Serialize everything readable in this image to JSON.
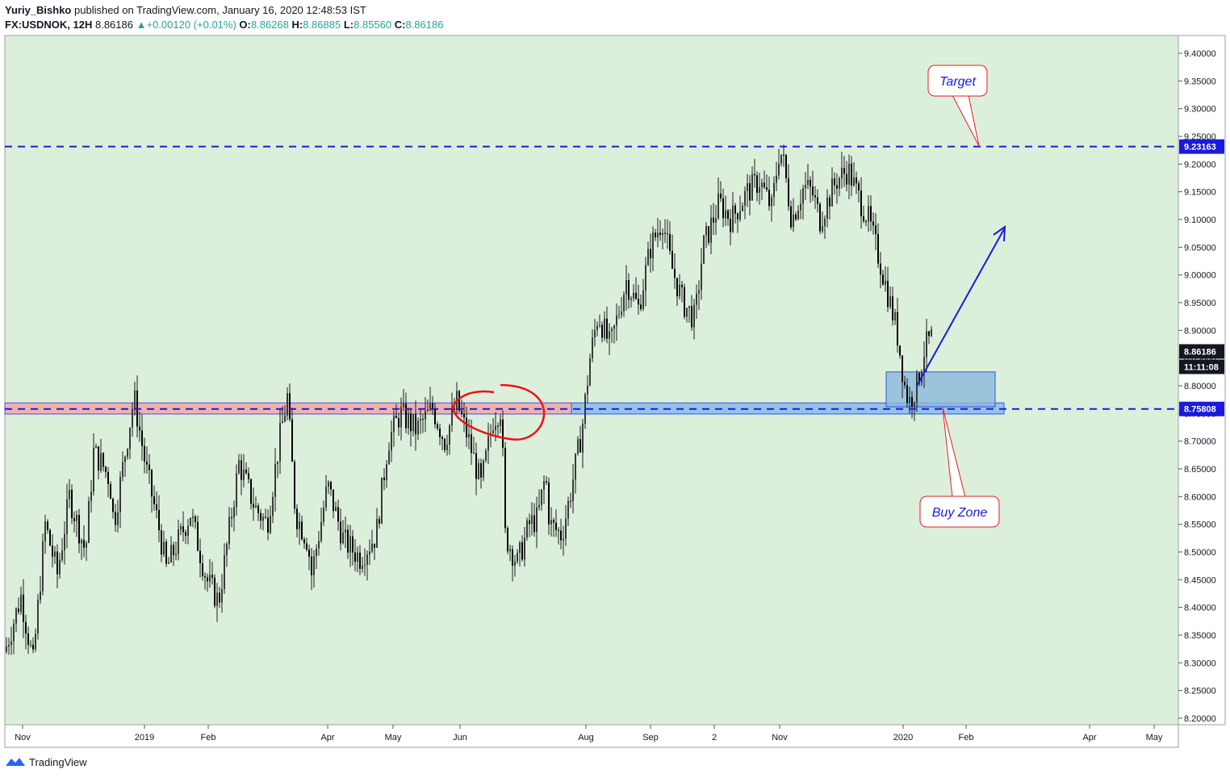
{
  "header": {
    "author": "Yuriy_Bishko",
    "published_text": "published on TradingView.com, January 16, 2020 12:48:53 IST",
    "symbol_interval": "FX:USDNOK, 12H",
    "last": "8.86186",
    "change": "+0.00120 (+0.01%)",
    "o_label": "O:",
    "o_value": "8.86268",
    "h_label": "H:",
    "h_value": "8.86885",
    "l_label": "L:",
    "l_value": "8.85560",
    "c_label": "C:",
    "c_value": "8.86186"
  },
  "footer": {
    "brand": "TradingView"
  },
  "colors": {
    "plot_bg": "#dcefdb",
    "candle": "#1c1c1c",
    "level_line": "#1a1adf",
    "pink_zone": "#f0a8a8",
    "blue_zone": "#7fb2ec",
    "callout_border": "#e02020",
    "callout_text": "#1a1adf",
    "price_tag": "#1a1adf",
    "last_tag": "#131722"
  },
  "chart_data": {
    "type": "candlestick",
    "symbol": "FX:USDNOK",
    "interval": "12H",
    "ylim": [
      8.18,
      9.42
    ],
    "y_ticks": [
      "9.40000",
      "9.35000",
      "9.30000",
      "9.25000",
      "9.20000",
      "9.15000",
      "9.10000",
      "9.05000",
      "9.00000",
      "8.95000",
      "8.90000",
      "8.85000",
      "8.80000",
      "8.75000",
      "8.70000",
      "8.65000",
      "8.60000",
      "8.55000",
      "8.50000",
      "8.45000",
      "8.40000",
      "8.35000",
      "8.30000",
      "8.25000",
      "8.20000"
    ],
    "x_ticks": [
      "Nov",
      "2019",
      "Feb",
      "Apr",
      "May",
      "Jun",
      "Aug",
      "Sep",
      "2",
      "Nov",
      "2020",
      "Feb",
      "Apr",
      "May"
    ],
    "close_path": [
      [
        0,
        8.32
      ],
      [
        0.02,
        8.42
      ],
      [
        0.035,
        8.3
      ],
      [
        0.05,
        8.55
      ],
      [
        0.065,
        8.46
      ],
      [
        0.08,
        8.6
      ],
      [
        0.1,
        8.5
      ],
      [
        0.11,
        8.68
      ],
      [
        0.12,
        8.66
      ],
      [
        0.13,
        8.63
      ],
      [
        0.135,
        8.55
      ],
      [
        0.16,
        8.78
      ],
      [
        0.175,
        8.65
      ],
      [
        0.19,
        8.55
      ],
      [
        0.2,
        8.47
      ],
      [
        0.23,
        8.57
      ],
      [
        0.25,
        8.45
      ],
      [
        0.265,
        8.41
      ],
      [
        0.29,
        8.66
      ],
      [
        0.31,
        8.58
      ],
      [
        0.325,
        8.55
      ],
      [
        0.34,
        8.7
      ],
      [
        0.35,
        8.78
      ],
      [
        0.36,
        8.57
      ],
      [
        0.375,
        8.52
      ],
      [
        0.38,
        8.46
      ],
      [
        0.4,
        8.62
      ],
      [
        0.42,
        8.52
      ],
      [
        0.44,
        8.49
      ],
      [
        0.46,
        8.53
      ],
      [
        0.475,
        8.7
      ],
      [
        0.49,
        8.75
      ],
      [
        0.51,
        8.72
      ],
      [
        0.53,
        8.76
      ],
      [
        0.545,
        8.7
      ],
      [
        0.56,
        8.77
      ],
      [
        0.575,
        8.7
      ],
      [
        0.59,
        8.62
      ],
      [
        0.605,
        8.74
      ],
      [
        0.615,
        8.76
      ],
      [
        0.62,
        8.53
      ],
      [
        0.635,
        8.48
      ],
      [
        0.65,
        8.55
      ],
      [
        0.66,
        8.56
      ],
      [
        0.67,
        8.64
      ],
      [
        0.675,
        8.55
      ],
      [
        0.69,
        8.53
      ],
      [
        0.7,
        8.6
      ],
      [
        0.715,
        8.72
      ],
      [
        0.725,
        8.85
      ],
      [
        0.735,
        8.93
      ],
      [
        0.75,
        8.87
      ],
      [
        0.77,
        8.99
      ],
      [
        0.785,
        8.94
      ],
      [
        0.8,
        9.05
      ],
      [
        0.815,
        9.1
      ],
      [
        0.825,
        9.02
      ],
      [
        0.84,
        8.95
      ],
      [
        0.855,
        8.92
      ],
      [
        0.865,
        9.05
      ],
      [
        0.885,
        9.13
      ],
      [
        0.9,
        9.1
      ],
      [
        0.92,
        9.15
      ],
      [
        0.935,
        9.17
      ],
      [
        0.95,
        9.12
      ],
      [
        0.96,
        9.23
      ],
      [
        0.965,
        9.2
      ],
      [
        0.975,
        9.1
      ],
      [
        0.99,
        9.16
      ],
      [
        1.0,
        9.15
      ],
      [
        1.01,
        9.1
      ],
      [
        1.03,
        9.17
      ],
      [
        1.045,
        9.19
      ],
      [
        1.055,
        9.15
      ],
      [
        1.07,
        9.1
      ],
      [
        1.085,
        9.02
      ],
      [
        1.095,
        8.96
      ],
      [
        1.105,
        8.9
      ],
      [
        1.115,
        8.8
      ],
      [
        1.12,
        8.77
      ],
      [
        1.13,
        8.8
      ],
      [
        1.14,
        8.87
      ],
      [
        1.15,
        8.89
      ],
      [
        1.16,
        8.86
      ]
    ],
    "levels": [
      {
        "price": 9.23163,
        "label": "9.23163",
        "style": "dashed"
      },
      {
        "price": 8.75808,
        "label": "8.75808",
        "style": "dashed"
      }
    ],
    "last_price": "8.86186",
    "countdown": "11:11:08",
    "zones": [
      {
        "name": "resistance-turned-support",
        "color": "pink",
        "ylim": [
          8.749,
          8.769
        ]
      },
      {
        "name": "support",
        "color": "blue",
        "ylim": [
          8.749,
          8.769
        ]
      },
      {
        "name": "buy-box",
        "color": "blue",
        "ylim": [
          8.762,
          8.825
        ]
      }
    ],
    "annotations": {
      "target": "Target",
      "buy_zone": "Buy Zone"
    }
  }
}
